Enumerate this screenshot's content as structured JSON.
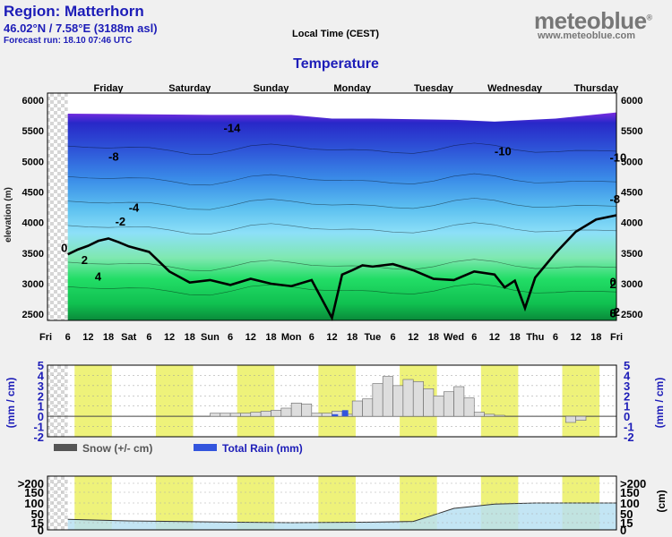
{
  "header": {
    "region": "Region: Matterhorn",
    "coords": "46.02°N / 7.58°E (3188m asl)",
    "forecast_run": "Forecast run: 18.10 07:46 UTC",
    "local_time": "Local Time (CEST)",
    "logo": "meteoblue",
    "logo_mark": "®",
    "site": "www.meteoblue.com"
  },
  "colors": {
    "snow": "#555555",
    "rain": "#3355dd",
    "night_band": "#eef27a",
    "cloud_fill": "#b8e0f2",
    "snow_bar": "#dddddd"
  },
  "chart_data": [
    {
      "type": "heatmap",
      "title": "Temperature",
      "ylabel": "elevation (m)",
      "ylim": [
        2400,
        6000
      ],
      "y_ticks": [
        2500,
        3000,
        3500,
        4000,
        4500,
        5000,
        5500,
        6000
      ],
      "day_labels": [
        "Friday",
        "Saturday",
        "Sunday",
        "Monday",
        "Tuesday",
        "Wednesday",
        "Thursday"
      ],
      "x_tick_labels": [
        "Fri",
        "6",
        "12",
        "18",
        "Sat",
        "6",
        "12",
        "18",
        "Sun",
        "6",
        "12",
        "18",
        "Mon",
        "6",
        "12",
        "18",
        "Tue",
        "6",
        "12",
        "18",
        "Wed",
        "6",
        "12",
        "18",
        "Thu",
        "6",
        "12",
        "18",
        "Fri"
      ],
      "contour_labels": [
        "-14",
        "-8",
        "-10",
        "-4",
        "-2",
        "-10",
        "-8",
        "0",
        "2",
        "4",
        "0",
        "2",
        "0",
        "-2",
        "8"
      ],
      "x_hours": [
        6,
        9,
        12,
        15,
        18,
        21,
        24,
        30,
        36,
        42,
        48,
        54,
        60,
        66,
        72,
        78,
        84,
        87,
        90,
        93,
        96,
        102,
        108,
        114,
        120,
        126,
        132,
        135,
        138,
        141,
        144,
        147,
        150,
        156,
        162,
        168
      ],
      "freezing_level_m": [
        3480,
        3560,
        3620,
        3700,
        3740,
        3680,
        3610,
        3520,
        3200,
        3020,
        3060,
        2980,
        3080,
        3000,
        2960,
        3060,
        2440,
        3150,
        3220,
        3300,
        3280,
        3320,
        3220,
        3080,
        3060,
        3200,
        3150,
        2940,
        3050,
        2600,
        3100,
        3300,
        3500,
        3850,
        4050,
        4120
      ]
    },
    {
      "type": "bar",
      "series": [
        {
          "name": "Snow (+/- cm)",
          "color": "#555555"
        },
        {
          "name": "Total Rain (mm)",
          "color": "#3355dd"
        }
      ],
      "ylabel_left": "(mm / cm)",
      "ylabel_right": "(mm / cm)",
      "ylim": [
        -2,
        5
      ],
      "y_ticks": [
        -2,
        -1,
        0,
        1,
        2,
        3,
        4,
        5
      ],
      "x_hours": [
        48,
        51,
        54,
        57,
        60,
        63,
        66,
        69,
        72,
        75,
        78,
        81,
        84,
        87,
        90,
        93,
        96,
        99,
        102,
        105,
        108,
        111,
        114,
        117,
        120,
        123,
        126,
        129,
        132,
        135,
        138,
        141,
        144,
        147,
        150,
        153,
        156,
        159
      ],
      "snow": [
        0.3,
        0.3,
        0.3,
        0.3,
        0.4,
        0.5,
        0.6,
        0.8,
        1.3,
        1.2,
        0.3,
        0.3,
        0.5,
        0.2,
        1.5,
        1.7,
        3.2,
        3.9,
        3.0,
        3.6,
        3.4,
        2.7,
        2.0,
        2.4,
        2.9,
        1.8,
        0.4,
        0.2,
        0.1,
        0.0,
        0.0,
        0.0,
        0.0,
        0.0,
        0.0,
        -0.6,
        -0.4,
        0.0
      ],
      "rain": [
        0,
        0,
        0,
        0,
        0,
        0,
        0,
        0,
        0,
        0,
        0,
        0,
        0.2,
        0.6,
        0,
        0,
        0,
        0,
        0,
        0,
        0,
        0,
        0,
        0,
        0,
        0,
        0,
        0,
        0,
        0,
        0,
        0,
        0,
        0,
        0,
        0,
        0,
        0
      ]
    },
    {
      "type": "area",
      "ylabel_right": "(cm)",
      "ylim": [
        0,
        220
      ],
      "y_tick_labels_left": [
        ">200",
        "150",
        "100",
        "50",
        "15",
        "0"
      ],
      "y_tick_labels_right": [
        ">200",
        "150",
        "100",
        "50",
        "15",
        "0"
      ],
      "x_hours": [
        6,
        24,
        48,
        72,
        96,
        108,
        114,
        120,
        132,
        144,
        156,
        168
      ],
      "values": [
        28,
        22,
        18,
        15,
        17,
        20,
        45,
        75,
        95,
        100,
        100,
        100
      ]
    }
  ]
}
